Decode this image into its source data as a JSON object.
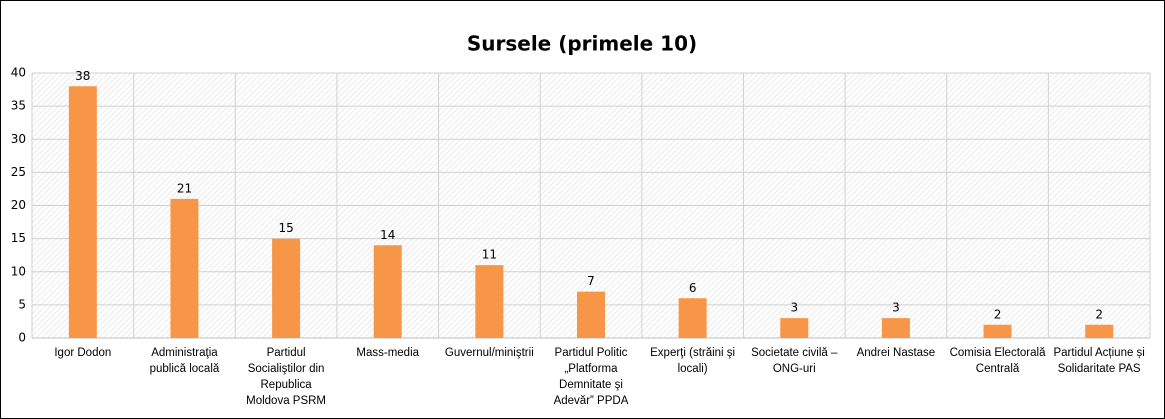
{
  "chart_data": {
    "type": "bar",
    "title": "Sursele (primele 10)",
    "categories": [
      "Igor Dodon",
      "Administraţia publică locală",
      "Partidul Socialiştilor din Republica Moldova PSRM",
      "Mass-media",
      "Guvernul/miniştrii",
      "Partidul Politic „Platforma Demnitate şi Adevăr” PPDA",
      "Experţi (străini şi locali)",
      "Societate civilă – ONG-uri",
      "Andrei Nastase",
      "Comisia Electorală Centrală",
      "Partidul Acțiune și Solidaritate PAS"
    ],
    "values": [
      38,
      21,
      15,
      14,
      11,
      7,
      6,
      3,
      3,
      2,
      2
    ],
    "color": "#f79646",
    "ylim": [
      0,
      40
    ],
    "yticks": [
      0,
      5,
      10,
      15,
      20,
      25,
      30,
      35,
      40
    ],
    "grid": true
  }
}
